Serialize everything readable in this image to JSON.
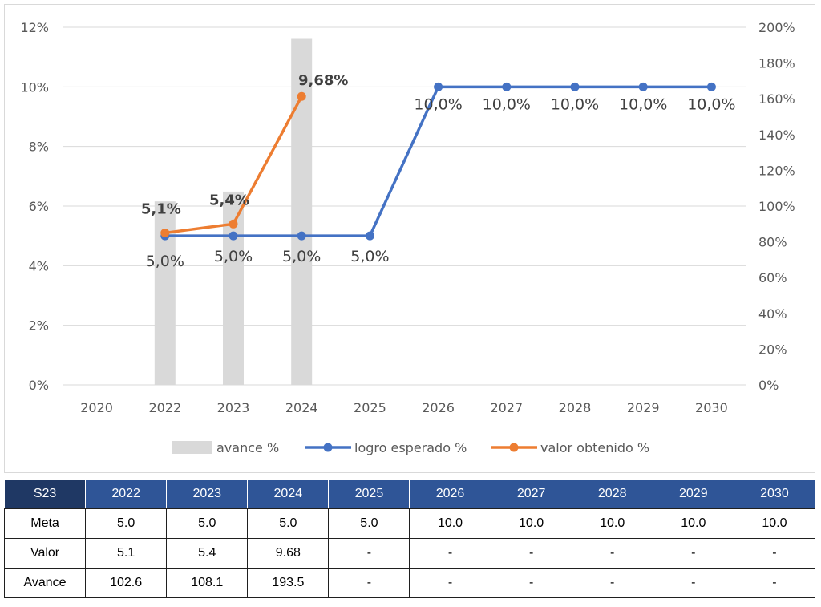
{
  "chart_data": {
    "type": "bar+line",
    "categories": [
      "2020",
      "2022",
      "2023",
      "2024",
      "2025",
      "2026",
      "2027",
      "2028",
      "2029",
      "2030"
    ],
    "y_left": {
      "ticks": [
        "0%",
        "2%",
        "4%",
        "6%",
        "8%",
        "10%",
        "12%"
      ],
      "range": [
        0,
        12
      ]
    },
    "y_right": {
      "ticks": [
        "0%",
        "20%",
        "40%",
        "60%",
        "80%",
        "100%",
        "120%",
        "140%",
        "160%",
        "180%",
        "200%"
      ],
      "range": [
        0,
        200
      ]
    },
    "series": [
      {
        "name": "avance %",
        "type": "bar",
        "axis": "right",
        "color": "#d9d9d9",
        "values": [
          null,
          102.6,
          108.1,
          193.5,
          null,
          null,
          null,
          null,
          null,
          null
        ]
      },
      {
        "name": "logro esperado %",
        "type": "line",
        "axis": "left",
        "color": "#4472c4",
        "values": [
          null,
          5.0,
          5.0,
          5.0,
          5.0,
          10.0,
          10.0,
          10.0,
          10.0,
          10.0
        ],
        "labels": [
          null,
          "5,0%",
          "5,0%",
          "5,0%",
          "5,0%",
          "10,0%",
          "10,0%",
          "10,0%",
          "10,0%",
          "10,0%"
        ]
      },
      {
        "name": "valor obtenido %",
        "type": "line",
        "axis": "left",
        "color": "#ed7d31",
        "values": [
          null,
          5.1,
          5.4,
          9.68,
          null,
          null,
          null,
          null,
          null,
          null
        ],
        "labels": [
          null,
          "5,1%",
          "5,4%",
          "9,68%",
          null,
          null,
          null,
          null,
          null,
          null
        ]
      }
    ],
    "grid": true,
    "legend": "bottom"
  },
  "table": {
    "corner": "S23",
    "years": [
      "2022",
      "2023",
      "2024",
      "2025",
      "2026",
      "2027",
      "2028",
      "2029",
      "2030"
    ],
    "rows": [
      {
        "label": "Meta",
        "cells": [
          "5.0",
          "5.0",
          "5.0",
          "5.0",
          "10.0",
          "10.0",
          "10.0",
          "10.0",
          "10.0"
        ]
      },
      {
        "label": "Valor",
        "cells": [
          "5.1",
          "5.4",
          "9.68",
          "-",
          "-",
          "-",
          "-",
          "-",
          "-"
        ]
      },
      {
        "label": "Avance",
        "cells": [
          "102.6",
          "108.1",
          "193.5",
          "-",
          "-",
          "-",
          "-",
          "-",
          "-"
        ]
      }
    ]
  }
}
